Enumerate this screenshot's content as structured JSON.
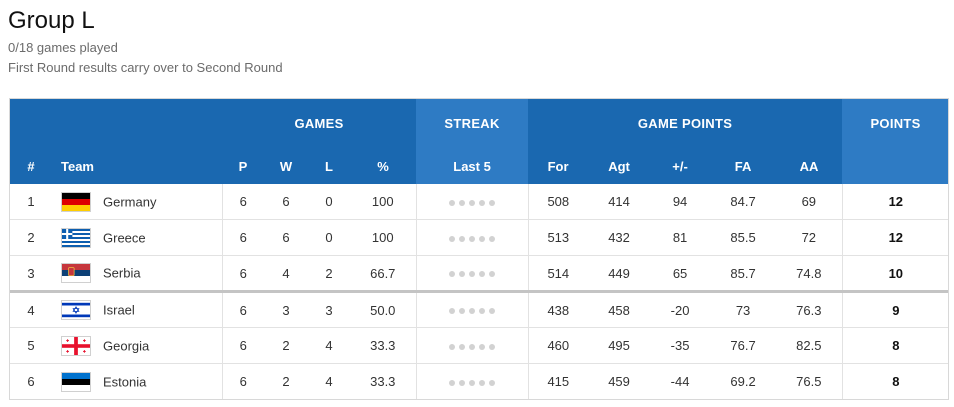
{
  "group": {
    "title": "Group L",
    "games_played": "0/18 games played",
    "note": "First Round results carry over to Second Round"
  },
  "headers": {
    "groups": {
      "games": "GAMES",
      "streak": "STREAK",
      "game_points": "GAME POINTS",
      "points": "POINTS"
    },
    "columns": {
      "rank": "#",
      "team": "Team",
      "p": "P",
      "w": "W",
      "l": "L",
      "pct": "%",
      "last5": "Last 5",
      "for": "For",
      "agt": "Agt",
      "diff": "+/-",
      "fa": "FA",
      "aa": "AA"
    }
  },
  "rows": [
    {
      "rank": "1",
      "team": "Germany",
      "flag": "germany-flag-icon",
      "p": "6",
      "w": "6",
      "l": "0",
      "pct": "100",
      "for": "508",
      "agt": "414",
      "diff": "94",
      "fa": "84.7",
      "aa": "69",
      "points": "12"
    },
    {
      "rank": "2",
      "team": "Greece",
      "flag": "greece-flag-icon",
      "p": "6",
      "w": "6",
      "l": "0",
      "pct": "100",
      "for": "513",
      "agt": "432",
      "diff": "81",
      "fa": "85.5",
      "aa": "72",
      "points": "12"
    },
    {
      "rank": "3",
      "team": "Serbia",
      "flag": "serbia-flag-icon",
      "p": "6",
      "w": "4",
      "l": "2",
      "pct": "66.7",
      "for": "514",
      "agt": "449",
      "diff": "65",
      "fa": "85.7",
      "aa": "74.8",
      "points": "10"
    },
    {
      "rank": "4",
      "team": "Israel",
      "flag": "israel-flag-icon",
      "p": "6",
      "w": "3",
      "l": "3",
      "pct": "50.0",
      "for": "438",
      "agt": "458",
      "diff": "-20",
      "fa": "73",
      "aa": "76.3",
      "points": "9"
    },
    {
      "rank": "5",
      "team": "Georgia",
      "flag": "georgia-flag-icon",
      "p": "6",
      "w": "2",
      "l": "4",
      "pct": "33.3",
      "for": "460",
      "agt": "495",
      "diff": "-35",
      "fa": "76.7",
      "aa": "82.5",
      "points": "8"
    },
    {
      "rank": "6",
      "team": "Estonia",
      "flag": "estonia-flag-icon",
      "p": "6",
      "w": "2",
      "l": "4",
      "pct": "33.3",
      "for": "415",
      "agt": "459",
      "diff": "-44",
      "fa": "69.2",
      "aa": "76.5",
      "points": "8"
    }
  ],
  "colors": {
    "header_dark": "#1a68b0",
    "header_light": "#2e7bc4",
    "streak_dot": "#d2d2d2"
  }
}
